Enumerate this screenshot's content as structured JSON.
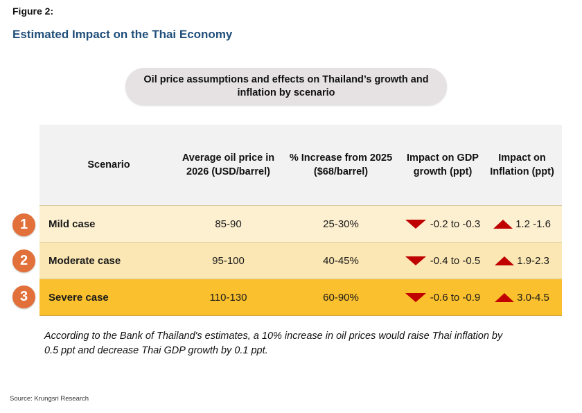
{
  "figure_label": "Figure 2:",
  "figure_title": "Estimated Impact on the Thai Economy",
  "subtitle": "Oil price assumptions and effects on Thailand’s growth and inflation by scenario",
  "table": {
    "headers": {
      "scenario": "Scenario",
      "oil_price": "Average oil price in 2026 (USD/barrel)",
      "increase": "% Increase from 2025 ($68/barrel)",
      "gdp": "Impact on GDP growth (ppt)",
      "inflation": "Impact on Inflation (ppt)"
    },
    "rows": [
      {
        "number": "1",
        "scenario": "Mild case",
        "oil_price": "85-90",
        "increase": "25-30%",
        "gdp": "-0.2 to -0.3",
        "inflation": "1.2 -1.6"
      },
      {
        "number": "2",
        "scenario": "Moderate case",
        "oil_price": "95-100",
        "increase": "40-45%",
        "gdp": "-0.4 to -0.5",
        "inflation": "1.9-2.3"
      },
      {
        "number": "3",
        "scenario": "Severe case",
        "oil_price": "110-130",
        "increase": "60-90%",
        "gdp": "-0.6 to -0.9",
        "inflation": "3.0-4.5"
      }
    ]
  },
  "note": "According to the Bank of Thailand's estimates, a 10% increase in oil prices would raise Thai inflation by 0.5 ppt and decrease Thai GDP growth by 0.1 ppt.",
  "source": "Source: Krungsri Research",
  "colors": {
    "title": "#1f4e79",
    "badge": "#e2703a",
    "arrow": "#c00000",
    "mild_row": "#fdf0d0",
    "moderate_row": "#fbe7b3",
    "severe_row": "#fbc02d"
  }
}
